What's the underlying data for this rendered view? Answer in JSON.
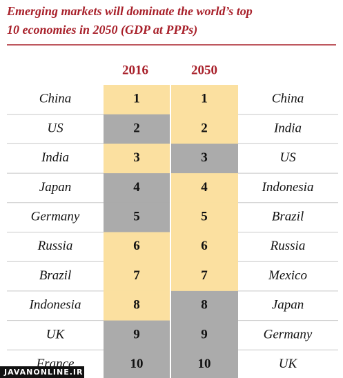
{
  "header": {
    "title_line1": "Emerging markets will dominate the world’s top",
    "title_line2": "10 economies in 2050 (GDP at PPPs)"
  },
  "table": {
    "columns": [
      "2016",
      "2050"
    ],
    "rows": [
      {
        "country_2016": "China",
        "rank_2016": 1,
        "color_2016": "#fbe0a0",
        "rank_2050": 1,
        "color_2050": "#fbe0a0",
        "country_2050": "China"
      },
      {
        "country_2016": "US",
        "rank_2016": 2,
        "color_2016": "#ababab",
        "rank_2050": 2,
        "color_2050": "#fbe0a0",
        "country_2050": "India"
      },
      {
        "country_2016": "India",
        "rank_2016": 3,
        "color_2016": "#fbe0a0",
        "rank_2050": 3,
        "color_2050": "#ababab",
        "country_2050": "US"
      },
      {
        "country_2016": "Japan",
        "rank_2016": 4,
        "color_2016": "#ababab",
        "rank_2050": 4,
        "color_2050": "#fbe0a0",
        "country_2050": "Indonesia"
      },
      {
        "country_2016": "Germany",
        "rank_2016": 5,
        "color_2016": "#ababab",
        "rank_2050": 5,
        "color_2050": "#fbe0a0",
        "country_2050": "Brazil"
      },
      {
        "country_2016": "Russia",
        "rank_2016": 6,
        "color_2016": "#fbe0a0",
        "rank_2050": 6,
        "color_2050": "#fbe0a0",
        "country_2050": "Russia"
      },
      {
        "country_2016": "Brazil",
        "rank_2016": 7,
        "color_2016": "#fbe0a0",
        "rank_2050": 7,
        "color_2050": "#fbe0a0",
        "country_2050": "Mexico"
      },
      {
        "country_2016": "Indonesia",
        "rank_2016": 8,
        "color_2016": "#fbe0a0",
        "rank_2050": 8,
        "color_2050": "#ababab",
        "country_2050": "Japan"
      },
      {
        "country_2016": "UK",
        "rank_2016": 9,
        "color_2016": "#ababab",
        "rank_2050": 9,
        "color_2050": "#ababab",
        "country_2050": "Germany"
      },
      {
        "country_2016": "France",
        "rank_2016": 10,
        "color_2016": "#ababab",
        "rank_2050": 10,
        "color_2050": "#ababab",
        "country_2050": "UK"
      }
    ]
  },
  "watermark": "JAVANONLINE.IR"
}
